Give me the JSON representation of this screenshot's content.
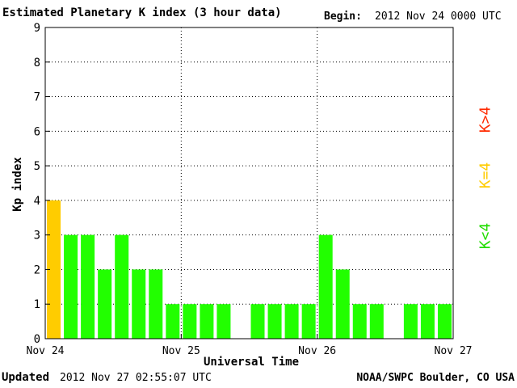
{
  "header": {
    "title": "Estimated Planetary K index (3 hour data)",
    "begin_label": "Begin:",
    "begin_value": "2012 Nov 24 0000 UTC"
  },
  "footer": {
    "updated_label": "Updated",
    "updated_value": "2012 Nov 27 02:55:07 UTC",
    "source": "NOAA/SWPC Boulder, CO USA"
  },
  "legend": {
    "high": "K>4",
    "equal": "K=4",
    "low": "K<4"
  },
  "colors": {
    "low": "#22ff00",
    "equal": "#ffcc00",
    "high": "#ff2a00"
  },
  "chart_data": {
    "type": "bar",
    "title": "Estimated Planetary K index (3 hour data)",
    "xlabel": "Universal Time",
    "ylabel": "Kp index",
    "ylim": [
      0,
      9
    ],
    "yticks": [
      "0",
      "1",
      "2",
      "3",
      "4",
      "5",
      "6",
      "7",
      "8",
      "9"
    ],
    "xticks": [
      "Nov 24",
      "Nov 25",
      "Nov 26",
      "Nov 27"
    ],
    "grid": true,
    "interval_hours": 3,
    "values": [
      4,
      3,
      3,
      2,
      3,
      2,
      2,
      1,
      1,
      1,
      1,
      null,
      1,
      1,
      1,
      1,
      3,
      2,
      1,
      1,
      null,
      1,
      1,
      1
    ]
  }
}
